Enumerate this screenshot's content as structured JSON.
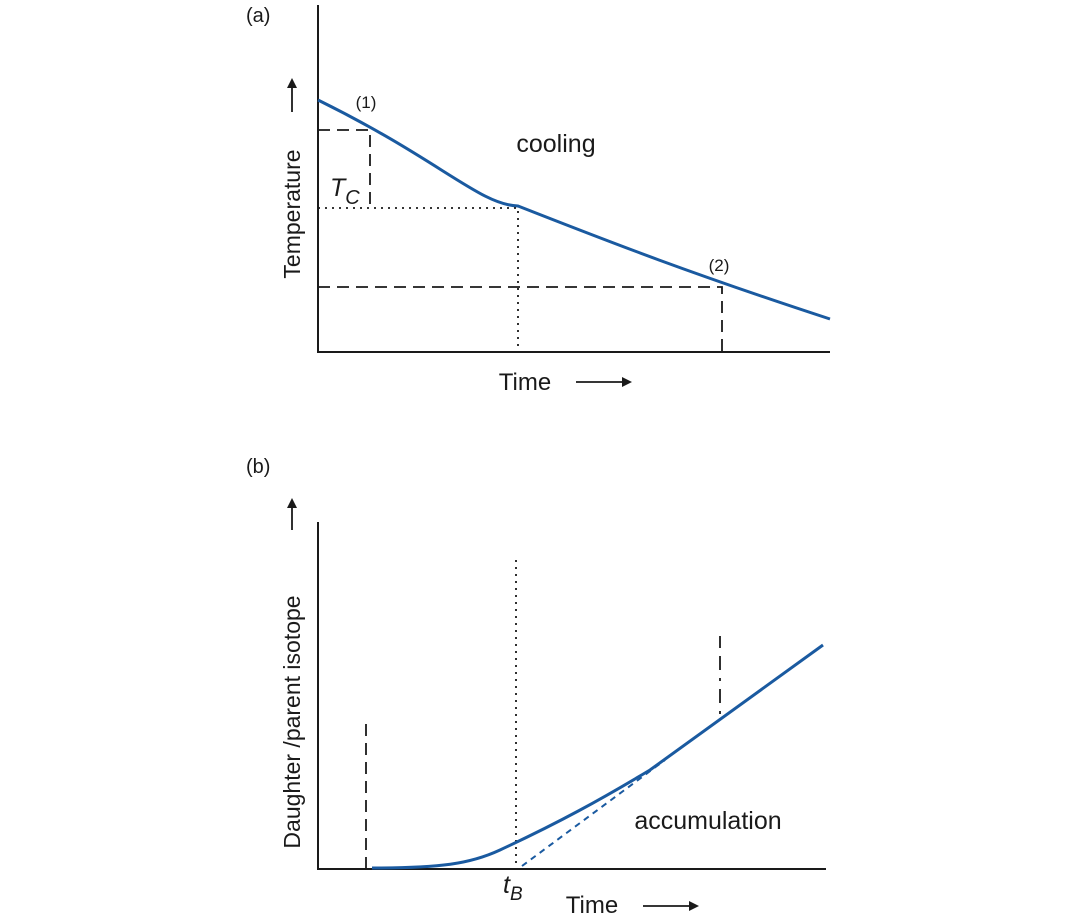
{
  "panel_a": {
    "label": "(a)",
    "ylabel": "Temperature",
    "xlabel": "Time",
    "curve_label": "cooling",
    "point1_label": "(1)",
    "point2_label": "(2)",
    "tc_label_main": "T",
    "tc_label_sub": "C"
  },
  "panel_b": {
    "label": "(b)",
    "ylabel": "Daughter /parent isotope",
    "xlabel": "Time",
    "curve_label": "accumulation",
    "tb_label_main": "t",
    "tb_label_sub": "B"
  },
  "colors": {
    "curve": "#1a5aa0",
    "axis": "#1a1a1a"
  }
}
